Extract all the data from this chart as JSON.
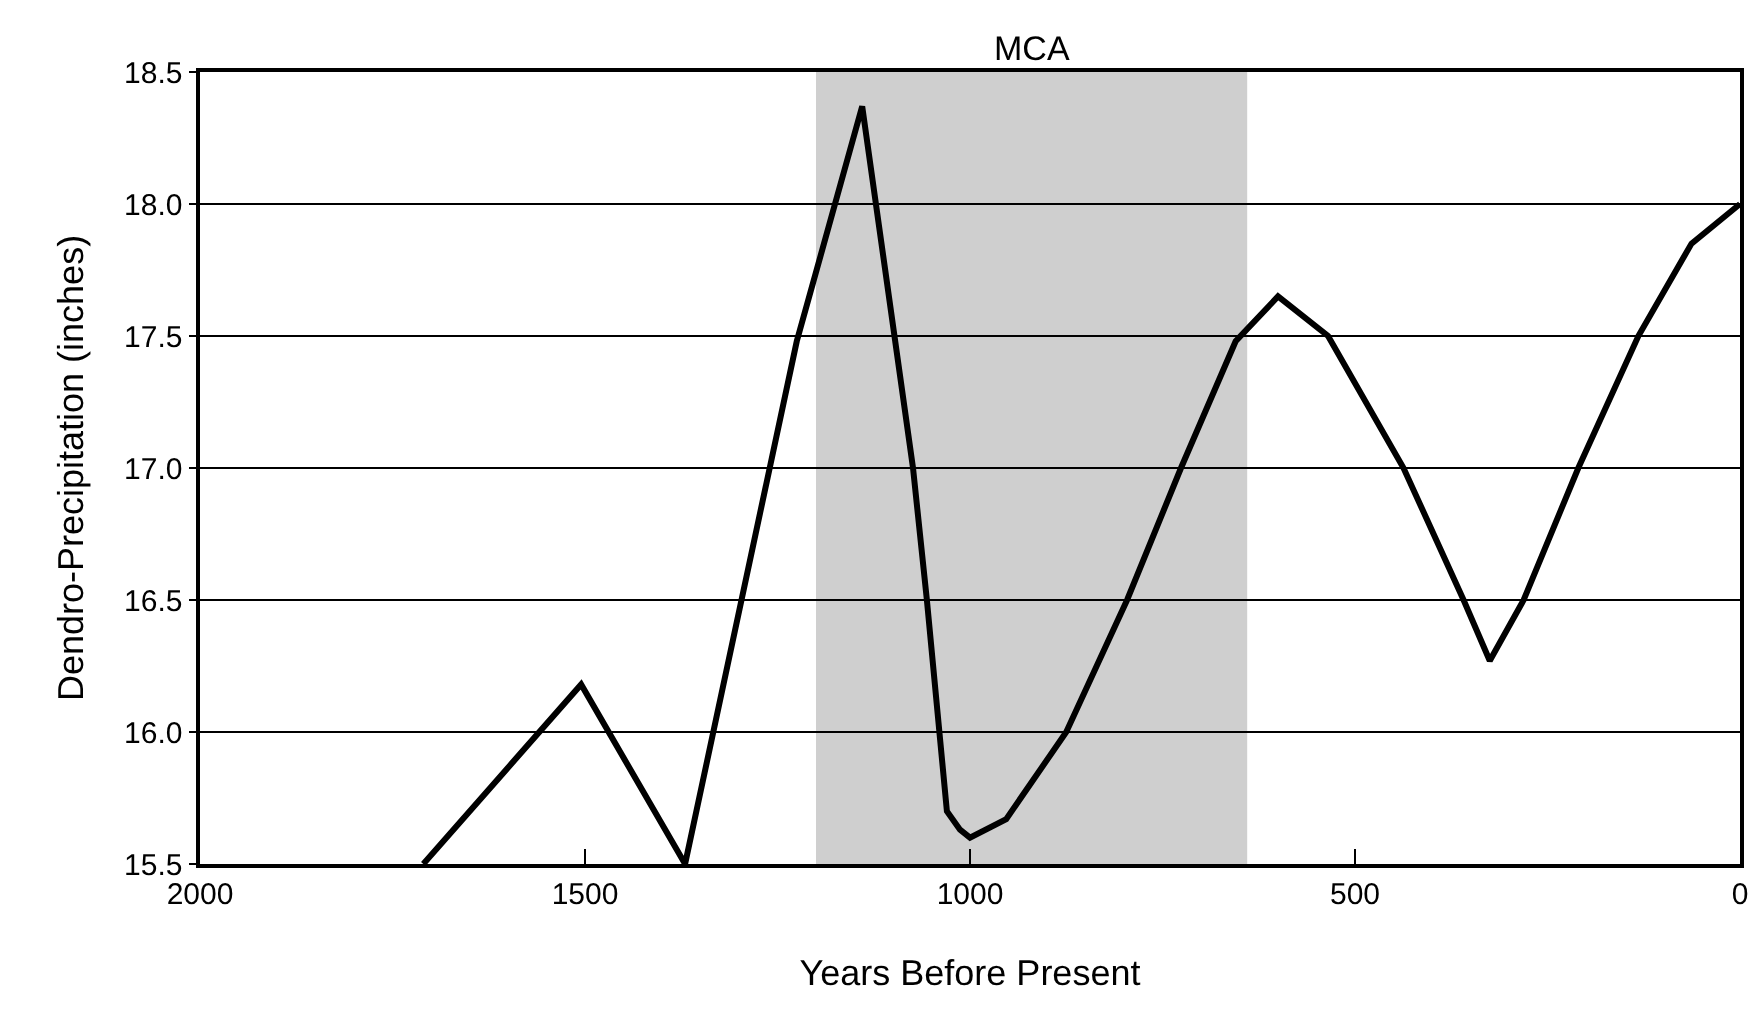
{
  "chart_data": {
    "type": "line",
    "xlabel": "Years Before Present",
    "ylabel": "Dendro-Precipitation (inches)",
    "x": [
      1710,
      1505,
      1370,
      1225,
      1140,
      1074,
      1056,
      1030,
      1013,
      1000,
      953,
      875,
      796,
      726,
      655,
      600,
      535,
      437,
      359,
      325,
      281,
      210,
      132,
      63,
      0
    ],
    "series": [
      {
        "color": "#000000",
        "values": [
          15.5,
          16.18,
          15.5,
          17.48,
          18.37,
          17.0,
          16.5,
          15.7,
          15.63,
          15.6,
          15.67,
          16.0,
          16.5,
          17.0,
          17.48,
          17.65,
          17.5,
          17.0,
          16.5,
          16.27,
          16.5,
          17.0,
          17.5,
          17.85,
          18.0
        ]
      }
    ],
    "xlim": [
      2000,
      0
    ],
    "xticks": [
      2000,
      1500,
      1000,
      500,
      0
    ],
    "ylim": [
      15.5,
      18.5
    ],
    "yticks": [
      15.5,
      {
        "value": 16,
        "label": "16.0"
      },
      16.5,
      {
        "value": 17,
        "label": "17.0"
      },
      17.5,
      {
        "value": 18,
        "label": "18.0"
      },
      18.5
    ],
    "bands": [
      {
        "axis": "x",
        "from": 1200,
        "to": 640,
        "label": "MCA",
        "color": "#cfcfcf"
      }
    ],
    "grid": "y",
    "line_style": "solid"
  }
}
